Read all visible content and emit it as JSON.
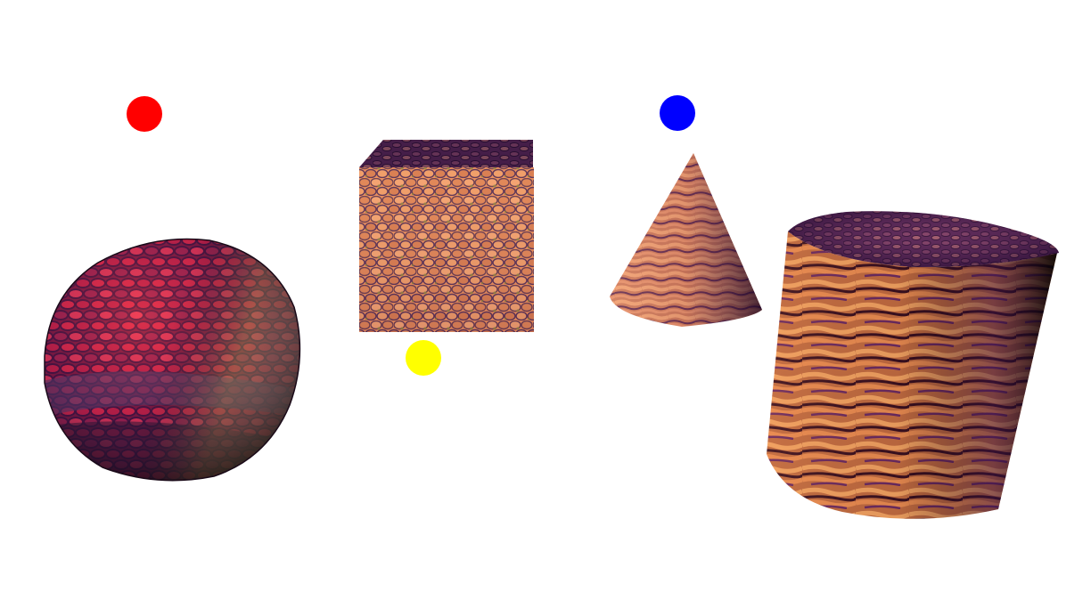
{
  "scene": {
    "background_color": "#ffffff",
    "objects": [
      {
        "kind": "sphere",
        "texture": "scaled-reptile-skin",
        "tint": "red-purple-olive"
      },
      {
        "kind": "cube",
        "texture": "scaled-reptile-skin",
        "tint": "orange-purple"
      },
      {
        "kind": "cone",
        "texture": "scaled-reptile-skin",
        "tint": "orange-purple"
      },
      {
        "kind": "cylinder",
        "texture": "scaled-reptile-skin",
        "tint": "orange-purple"
      }
    ],
    "lights": [
      {
        "name": "red-light",
        "color": "#ff0000"
      },
      {
        "name": "yellow-light",
        "color": "#ffff00"
      },
      {
        "name": "blue-light",
        "color": "#0000ff"
      }
    ]
  }
}
